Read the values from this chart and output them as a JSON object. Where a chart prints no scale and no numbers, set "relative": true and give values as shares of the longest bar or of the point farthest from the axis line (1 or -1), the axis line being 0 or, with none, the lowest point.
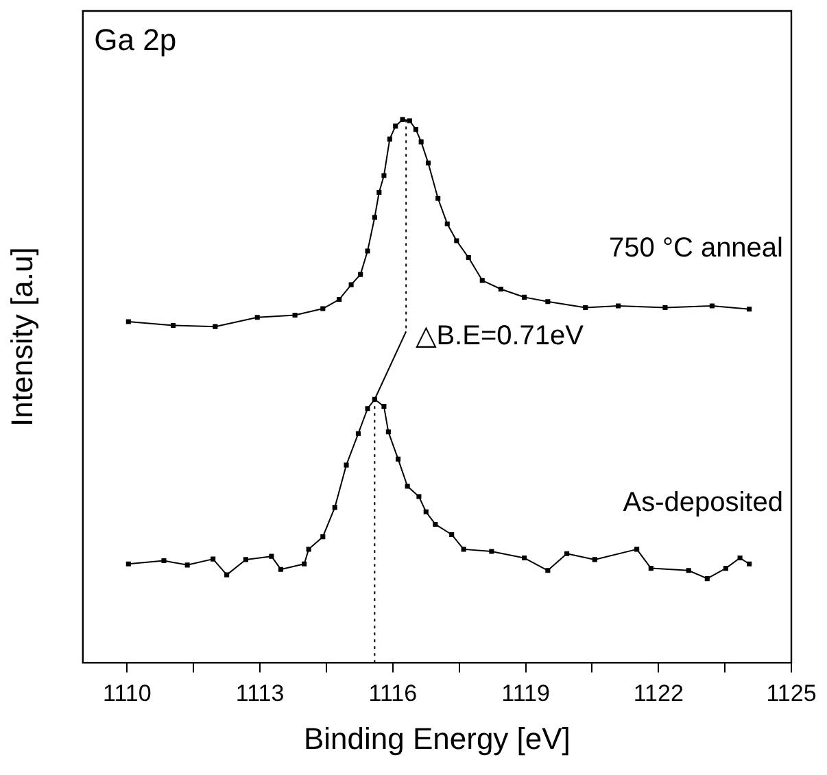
{
  "chart_data": {
    "type": "line",
    "xlabel": "Binding Energy [eV]",
    "ylabel": "Intensity [a.u]",
    "relative": true,
    "marker": "square",
    "legend": false,
    "grid": false,
    "xlim": [
      1109,
      1125
    ],
    "xticks": [
      1110,
      {
        "value": 1111.5,
        "label": null
      },
      1113,
      {
        "value": 1114.5,
        "label": null
      },
      1116,
      {
        "value": 1117.5,
        "label": null
      },
      1119,
      {
        "value": 1120.5,
        "label": null
      },
      1122,
      {
        "value": 1123.5,
        "label": null
      },
      1125
    ],
    "annotations": [
      "Ga 2p",
      "△B.E=0.71eV"
    ],
    "series": [
      {
        "name": "750 °C anneal",
        "color": "#000000",
        "x": [
          1110.03,
          1111.04,
          1111.99,
          1112.94,
          1113.79,
          1114.42,
          1114.79,
          1115.06,
          1115.27,
          1115.43,
          1115.59,
          1115.69,
          1115.8,
          1115.93,
          1116.06,
          1116.22,
          1116.38,
          1116.52,
          1116.64,
          1116.8,
          1117.02,
          1117.23,
          1117.44,
          1117.71,
          1118.02,
          1118.44,
          1118.97,
          1119.5,
          1120.35,
          1121.09,
          1122.15,
          1123.21,
          1124.05
        ],
        "values": [
          0.628,
          0.621,
          0.619,
          0.636,
          0.64,
          0.652,
          0.669,
          0.696,
          0.715,
          0.758,
          0.82,
          0.866,
          0.897,
          0.964,
          0.988,
          1,
          0.998,
          0.982,
          0.959,
          0.92,
          0.855,
          0.808,
          0.777,
          0.746,
          0.704,
          0.688,
          0.673,
          0.665,
          0.654,
          0.657,
          0.654,
          0.657,
          0.651
        ]
      },
      {
        "name": "As-deposited",
        "color": "#000000",
        "x": [
          1110.03,
          1110.83,
          1111.36,
          1111.94,
          1112.25,
          1112.68,
          1113.26,
          1113.47,
          1114.0,
          1114.1,
          1114.42,
          1114.69,
          1114.95,
          1115.22,
          1115.43,
          1115.59,
          1115.8,
          1115.9,
          1116.12,
          1116.33,
          1116.59,
          1116.75,
          1116.96,
          1117.33,
          1117.6,
          1118.23,
          1118.97,
          1119.5,
          1119.93,
          1120.56,
          1121.51,
          1121.83,
          1122.68,
          1123.1,
          1123.52,
          1123.84,
          1124.05
        ],
        "values": [
          0.182,
          0.188,
          0.18,
          0.191,
          0.162,
          0.19,
          0.196,
          0.172,
          0.182,
          0.209,
          0.232,
          0.286,
          0.364,
          0.422,
          0.468,
          0.485,
          0.472,
          0.425,
          0.375,
          0.325,
          0.306,
          0.278,
          0.255,
          0.236,
          0.209,
          0.205,
          0.193,
          0.17,
          0.201,
          0.19,
          0.209,
          0.174,
          0.17,
          0.155,
          0.174,
          0.193,
          0.182
        ]
      },
      {
        "type": "line",
        "color": "#000000",
        "marker": "none",
        "line_style": "dotted",
        "x": [
          1116.3,
          1116.3
        ],
        "values": [
          1,
          0.61
        ]
      },
      {
        "type": "line",
        "color": "#000000",
        "marker": "none",
        "line_style": "dotted",
        "x": [
          1115.59,
          1115.59
        ],
        "values": [
          0.485,
          0
        ]
      },
      {
        "type": "line",
        "color": "#000000",
        "marker": "none",
        "line_style": "solid",
        "x": [
          1116.3,
          1115.59
        ],
        "values": [
          0.61,
          0.485
        ]
      }
    ]
  }
}
